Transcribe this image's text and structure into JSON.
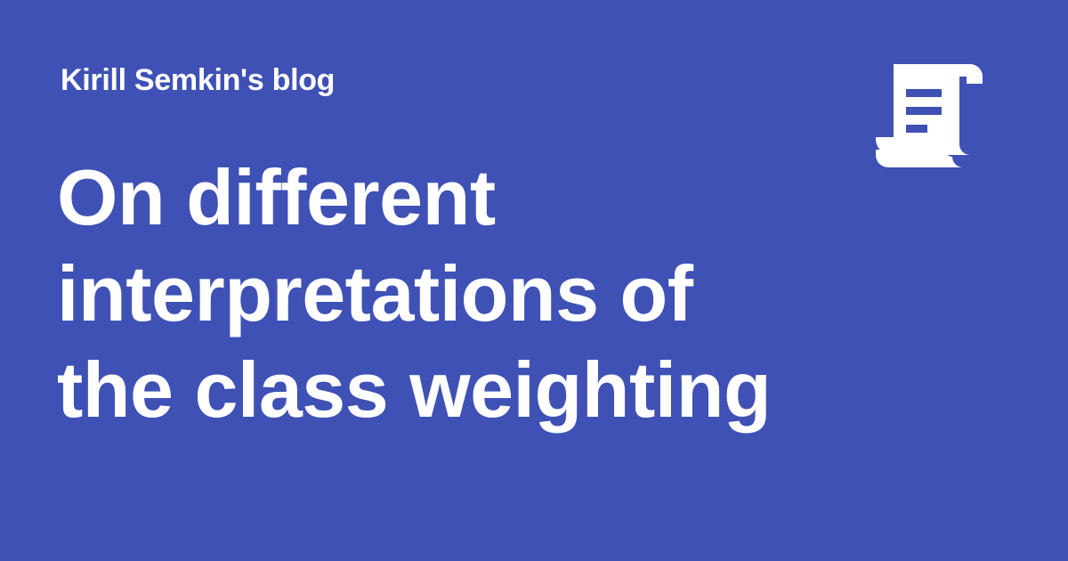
{
  "header": {
    "site_name": "Kirill Semkin's blog"
  },
  "post": {
    "title": "On different interpretations of the class weighting"
  },
  "icon": {
    "name": "scroll-icon"
  },
  "colors": {
    "background": "#3f51b5",
    "foreground": "#ffffff"
  }
}
